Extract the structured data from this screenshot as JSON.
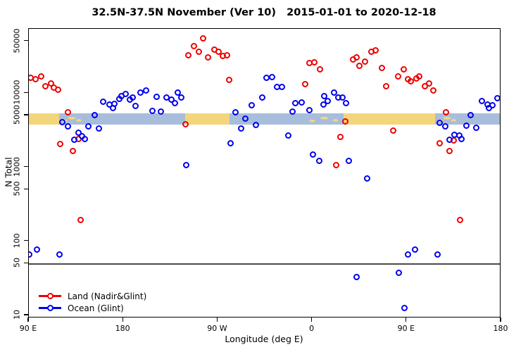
{
  "chart_data": {
    "type": "scatter",
    "title": "32.5N-37.5N November (Ver 10)   2015-01-01 to 2020-12-18",
    "xlabel": "Longitude (deg E)",
    "ylabel": "N Total",
    "y_scale": "log",
    "ylim": [
      10,
      60000
    ],
    "x_axis_note": "longitude axis starts at 90E and wraps eastward 450 degrees",
    "x_span_deg": 450,
    "x_ticks": [
      {
        "pos": 0,
        "label": "90 E"
      },
      {
        "pos": 90,
        "label": "180"
      },
      {
        "pos": 180,
        "label": "90 W"
      },
      {
        "pos": 270,
        "label": "0"
      },
      {
        "pos": 360,
        "label": "90 E"
      },
      {
        "pos": 450,
        "label": "180"
      }
    ],
    "y_ticks": [
      {
        "value": 50000,
        "label": "50000"
      },
      {
        "value": 10000,
        "label": "10000"
      },
      {
        "value": 5000,
        "label": "5000"
      },
      {
        "value": 1000,
        "label": "1000"
      },
      {
        "value": 500,
        "label": "500"
      },
      {
        "value": 100,
        "label": "100"
      },
      {
        "value": 50,
        "label": "50"
      },
      {
        "value": 10,
        "label": "10"
      }
    ],
    "reference_line_n": 50,
    "legend": [
      {
        "label": "Land (Nadir&Glint)",
        "color": "#ee0000"
      },
      {
        "label": "Ocean (Glint)",
        "color": "#0000ee"
      }
    ],
    "surface_band": {
      "n_top": 5300,
      "n_bottom": 3800,
      "land_color": "#f3d67c",
      "ocean_color": "#a8bddb",
      "segments": [
        {
          "from": 0,
          "to": 29,
          "type": "land"
        },
        {
          "from": 29,
          "to": 52.5,
          "type": "mixed"
        },
        {
          "from": 52.5,
          "to": 149,
          "type": "ocean"
        },
        {
          "from": 149,
          "to": 191,
          "type": "land"
        },
        {
          "from": 191,
          "to": 261.5,
          "type": "ocean"
        },
        {
          "from": 261.5,
          "to": 300,
          "type": "mixed"
        },
        {
          "from": 300,
          "to": 387,
          "type": "land"
        },
        {
          "from": 387,
          "to": 409,
          "type": "mixed"
        },
        {
          "from": 409,
          "to": 450,
          "type": "ocean"
        }
      ]
    },
    "series": [
      {
        "name": "Land (Nadir&Glint)",
        "color": "#ee0000",
        "points": [
          [
            2,
            16300
          ],
          [
            6.5,
            15600
          ],
          [
            12,
            17000
          ],
          [
            16,
            12500
          ],
          [
            21,
            13700
          ],
          [
            23.5,
            12000
          ],
          [
            28,
            11200
          ],
          [
            30,
            2080
          ],
          [
            37,
            5470
          ],
          [
            42,
            1670
          ],
          [
            47.5,
            2380
          ],
          [
            49.5,
            196
          ],
          [
            149,
            3780
          ],
          [
            152,
            32200
          ],
          [
            157,
            42900
          ],
          [
            162,
            36600
          ],
          [
            166,
            55000
          ],
          [
            171,
            30200
          ],
          [
            177,
            38400
          ],
          [
            181,
            36000
          ],
          [
            185,
            31600
          ],
          [
            188.5,
            32300
          ],
          [
            191,
            15000
          ],
          [
            263,
            13400
          ],
          [
            267,
            25300
          ],
          [
            272,
            25900
          ],
          [
            277,
            20800
          ],
          [
            293,
            1080
          ],
          [
            297,
            2590
          ],
          [
            301.5,
            4200
          ],
          [
            308.5,
            28300
          ],
          [
            312,
            30800
          ],
          [
            315,
            23600
          ],
          [
            320,
            26500
          ],
          [
            326.5,
            36000
          ],
          [
            330.5,
            37600
          ],
          [
            336.5,
            21800
          ],
          [
            340.5,
            12300
          ],
          [
            347,
            3160
          ],
          [
            352,
            16700
          ],
          [
            357,
            20800
          ],
          [
            361,
            15600
          ],
          [
            364,
            14600
          ],
          [
            369.5,
            15900
          ],
          [
            372,
            17000
          ],
          [
            377,
            12500
          ],
          [
            381.5,
            13700
          ],
          [
            385.5,
            10900
          ],
          [
            391,
            2130
          ],
          [
            397.5,
            5470
          ],
          [
            401,
            1670
          ],
          [
            404.5,
            2280
          ],
          [
            410.5,
            196
          ]
        ]
      },
      {
        "name": "Ocean (Glint)",
        "color": "#0000ee",
        "points": [
          [
            0,
            66
          ],
          [
            8,
            78
          ],
          [
            29.5,
            66
          ],
          [
            32,
            4100
          ],
          [
            37.5,
            3530
          ],
          [
            43,
            2330
          ],
          [
            47,
            2900
          ],
          [
            50.5,
            2600
          ],
          [
            53,
            2430
          ],
          [
            56.5,
            3530
          ],
          [
            62.5,
            5020
          ],
          [
            66.5,
            3310
          ],
          [
            71,
            7600
          ],
          [
            76.5,
            6960
          ],
          [
            80,
            6370
          ],
          [
            81.5,
            7120
          ],
          [
            86,
            8300
          ],
          [
            88.5,
            9070
          ],
          [
            92.5,
            9690
          ],
          [
            96,
            8120
          ],
          [
            99,
            8670
          ],
          [
            101.5,
            6660
          ],
          [
            106.5,
            10100
          ],
          [
            111.5,
            10900
          ],
          [
            117.5,
            5800
          ],
          [
            122,
            8860
          ],
          [
            125.5,
            5670
          ],
          [
            131,
            8670
          ],
          [
            136,
            8120
          ],
          [
            139,
            7280
          ],
          [
            142,
            10300
          ],
          [
            145.5,
            8670
          ],
          [
            150,
            1080
          ],
          [
            192,
            2130
          ],
          [
            197,
            5470
          ],
          [
            202,
            3310
          ],
          [
            206,
            4500
          ],
          [
            212,
            6810
          ],
          [
            216.5,
            3690
          ],
          [
            222.5,
            8670
          ],
          [
            226.5,
            16100
          ],
          [
            231.5,
            16400
          ],
          [
            236.5,
            12100
          ],
          [
            241,
            12100
          ],
          [
            247,
            2710
          ],
          [
            251,
            5590
          ],
          [
            254,
            7280
          ],
          [
            260,
            7430
          ],
          [
            267.5,
            5930
          ],
          [
            270.5,
            1500
          ],
          [
            276.5,
            1210
          ],
          [
            280.5,
            6960
          ],
          [
            281.5,
            9070
          ],
          [
            284.5,
            7920
          ],
          [
            290.5,
            10100
          ],
          [
            295,
            8670
          ],
          [
            298.5,
            8670
          ],
          [
            302,
            7280
          ],
          [
            305,
            1210
          ],
          [
            312,
            33
          ],
          [
            322,
            700
          ],
          [
            352.5,
            38
          ],
          [
            357.5,
            12.7
          ],
          [
            361,
            66
          ],
          [
            368,
            78
          ],
          [
            389,
            66
          ],
          [
            391,
            4010
          ],
          [
            397,
            3530
          ],
          [
            400.5,
            2330
          ],
          [
            405.5,
            2770
          ],
          [
            410,
            2660
          ],
          [
            412,
            2430
          ],
          [
            417,
            3610
          ],
          [
            420.5,
            5020
          ],
          [
            426.5,
            3390
          ],
          [
            431.5,
            7920
          ],
          [
            437,
            6960
          ],
          [
            438.5,
            6370
          ],
          [
            441.5,
            6810
          ],
          [
            446.5,
            8480
          ]
        ]
      }
    ]
  }
}
